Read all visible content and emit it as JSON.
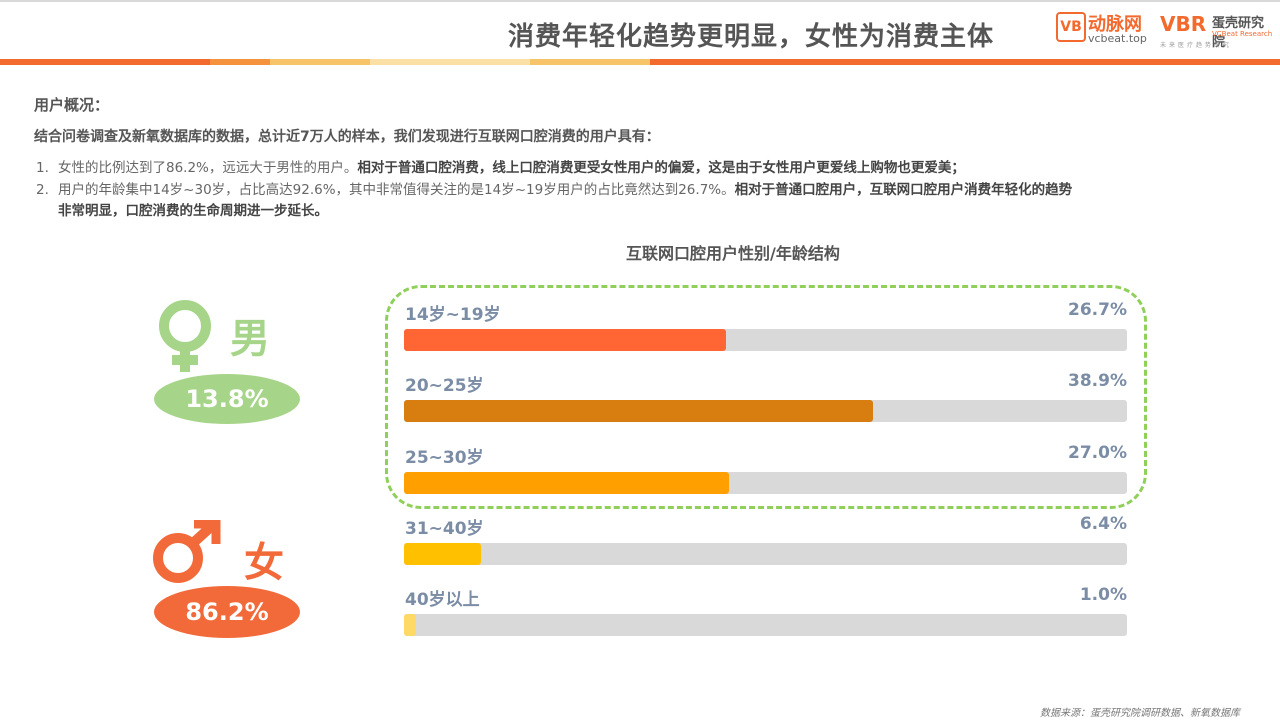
{
  "header": {
    "title": "消费年轻化趋势更明显，女性为消费主体",
    "logo_vcbeat": {
      "badge": "VB",
      "name": "动脉网",
      "sub": "vcbeat.top"
    },
    "logo_vbr": {
      "mark": "VBR",
      "name": "蛋壳研究院",
      "sub": "VCBeat Research",
      "sub2": "未来医疗趋势研究"
    }
  },
  "colors": {
    "stripe": [
      "#f26a2e",
      "#f5923e",
      "#f8c46a",
      "#fbe0a6",
      "#f8c46a",
      "#f26a2e"
    ],
    "male": "#a6d58a",
    "female": "#f26a3a",
    "dash": "#8fcf5a"
  },
  "summary": {
    "heading": "用户概况：",
    "intro": "结合问卷调查及新氧数据库的数据，总计近7万人的样本，我们发现进行互联网口腔消费的用户具有：",
    "points": [
      {
        "num": "1.",
        "normal": "女性的比例达到了86.2%，远远大于男性的用户。",
        "bold": "相对于普通口腔消费，线上口腔消费更受女性用户的偏爱，这是由于女性用户更爱线上购物也更爱美；"
      },
      {
        "num": "2.",
        "normal": "用户的年龄集中14岁~30岁，占比高达92.6%，其中非常值得关注的是14岁~19岁用户的占比竟然达到26.7%。",
        "bold": "相对于普通口腔用户，互联网口腔用户消费年轻化的趋势",
        "bold2": "非常明显，口腔消费的生命周期进一步延长。"
      }
    ]
  },
  "gender": {
    "male": {
      "label": "男",
      "value": "13.8%",
      "icon": "female-symbol-icon"
    },
    "female": {
      "label": "女",
      "value": "86.2%",
      "icon": "male-symbol-icon"
    }
  },
  "chart_data": {
    "type": "bar",
    "title": "互联网口腔用户性别/年龄结构",
    "categories": [
      "14岁~19岁",
      "20~25岁",
      "25~30岁",
      "31~40岁",
      "40岁以上"
    ],
    "values": [
      26.7,
      38.9,
      27.0,
      6.4,
      1.0
    ],
    "value_labels": [
      "26.7%",
      "38.9%",
      "27.0%",
      "6.4%",
      "1.0%"
    ],
    "colors": [
      "#ff6633",
      "#d87e10",
      "#ffa000",
      "#ffc000",
      "#ffd966"
    ],
    "unit": "%",
    "xlim": [
      0,
      60
    ],
    "orientation": "horizontal",
    "highlight_group": [
      "14岁~19岁",
      "20~25岁",
      "25~30岁"
    ]
  },
  "footer": {
    "source": "数据来源：蛋壳研究院调研数据、新氧数据库"
  }
}
